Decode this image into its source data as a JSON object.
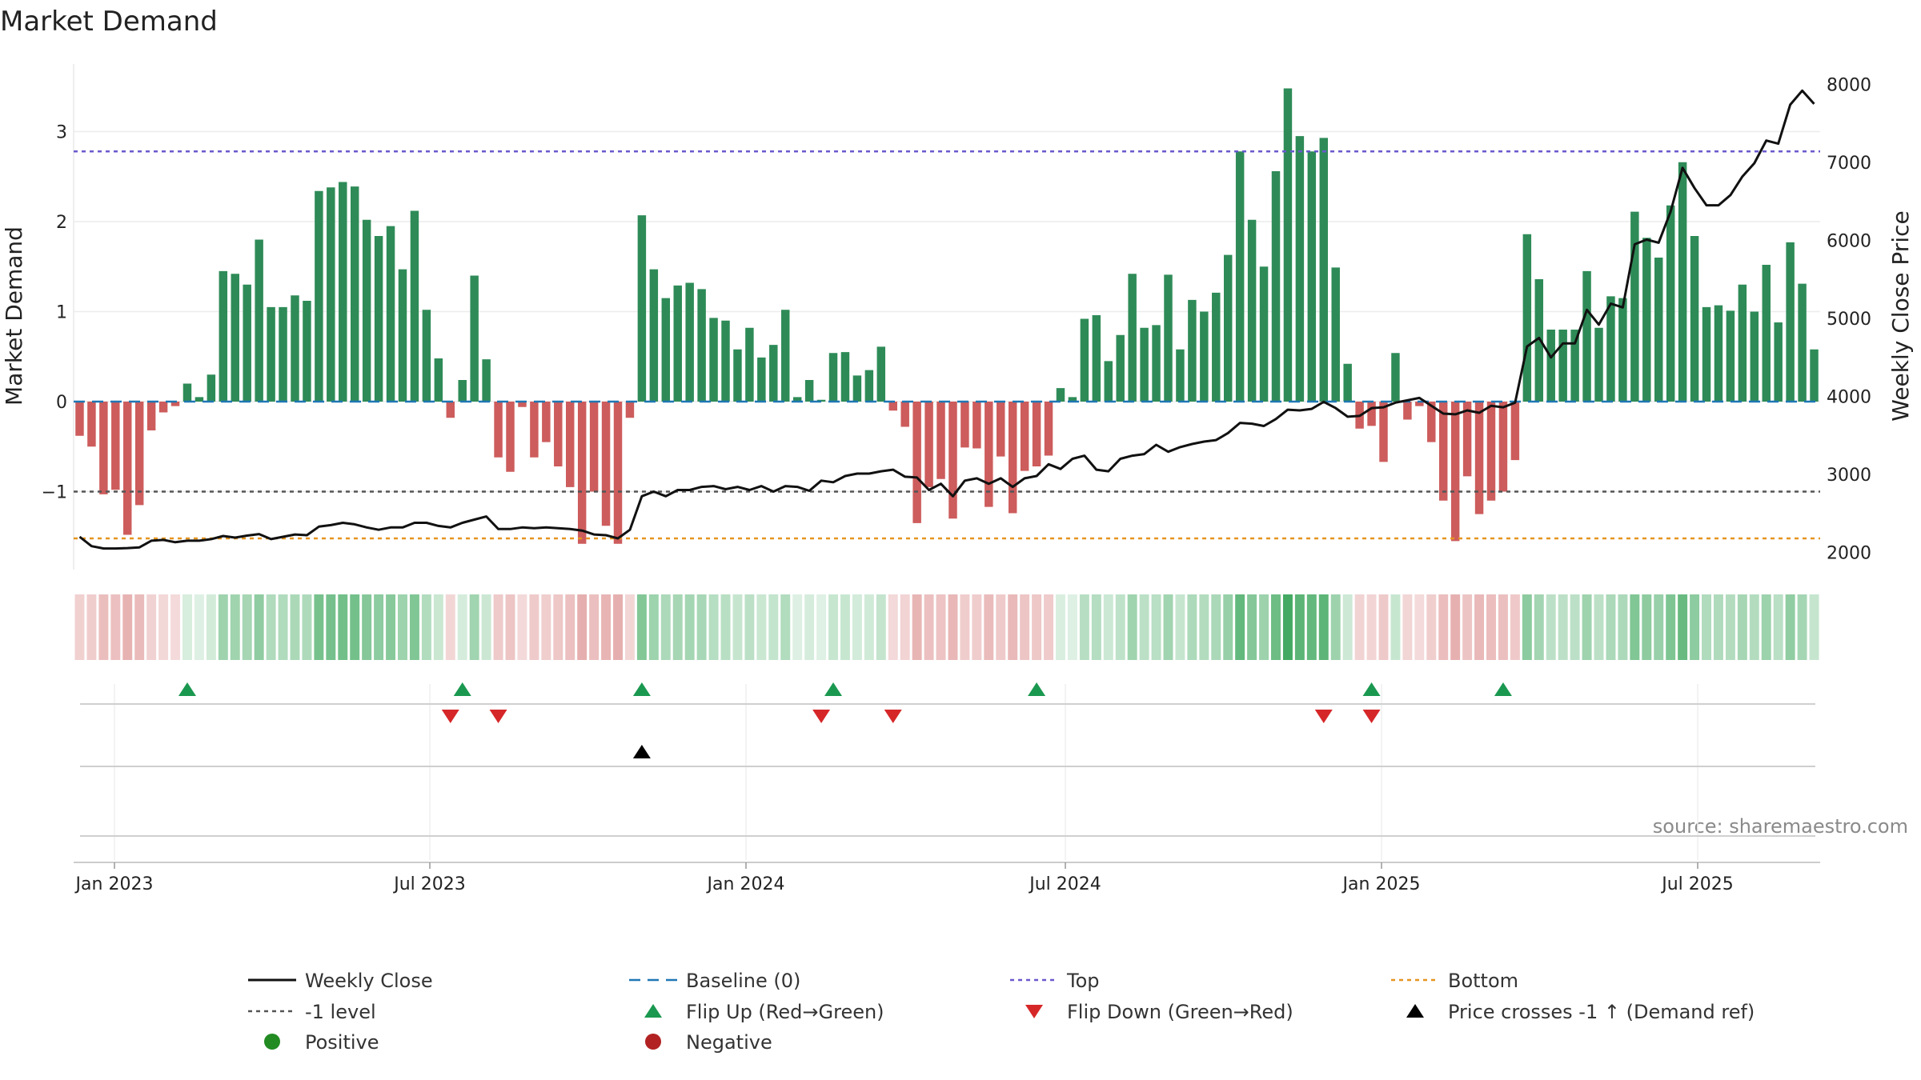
{
  "title": "Market Demand",
  "source": "source: sharemaestro.com",
  "colors": {
    "positive_bar": "#2e8b57",
    "negative_bar": "#cd5c5c",
    "price_line": "#111111",
    "baseline": "#1f77b4",
    "top_line": "#6a5acd",
    "bottom_line": "#e69520",
    "minus1_line": "#555555",
    "flip_up": "#1a9850",
    "flip_down": "#d62728",
    "cross_marker": "#000000",
    "positive_dot": "#228b22",
    "negative_dot": "#b22222"
  },
  "chart_data": {
    "type": "bar",
    "title": "Market Demand",
    "ylabel": "Market Demand",
    "y2label": "Weekly Close Price",
    "ylim": [
      -1.85,
      3.75
    ],
    "y2lim": [
      1700,
      8250
    ],
    "y_ticks": [
      -1,
      0,
      1,
      2,
      3
    ],
    "y_tick_labels": [
      "−1",
      "0",
      "1",
      "2",
      "3"
    ],
    "y2_ticks": [
      2000,
      3000,
      4000,
      5000,
      6000,
      7000,
      8000
    ],
    "x_tick_labels": [
      "Jan 2023",
      "Jul 2023",
      "Jan 2024",
      "Jul 2024",
      "Jan 2025",
      "Jul 2025"
    ],
    "x_tick_weeks": [
      3,
      29,
      55.5,
      81.5,
      108,
      134
    ],
    "reference_lines": {
      "top": 2.78,
      "minus1": -1.0,
      "bottom": -1.52,
      "baseline": 0
    },
    "demand": [
      -0.38,
      -0.5,
      -1.03,
      -0.98,
      -1.48,
      -1.15,
      -0.32,
      -0.12,
      -0.05,
      0.2,
      0.05,
      0.3,
      1.45,
      1.42,
      1.3,
      1.8,
      1.05,
      1.05,
      1.18,
      1.12,
      2.34,
      2.38,
      2.44,
      2.39,
      2.02,
      1.84,
      1.95,
      1.47,
      2.12,
      1.02,
      0.48,
      -0.18,
      0.24,
      1.4,
      0.47,
      -0.62,
      -0.78,
      -0.06,
      -0.62,
      -0.45,
      -0.72,
      -0.95,
      -1.58,
      -1.0,
      -1.38,
      -1.58,
      -0.18,
      2.07,
      1.47,
      1.15,
      1.29,
      1.32,
      1.25,
      0.93,
      0.9,
      0.58,
      0.82,
      0.49,
      0.63,
      1.02,
      0.05,
      0.24,
      0.02,
      0.54,
      0.55,
      0.29,
      0.35,
      0.61,
      -0.1,
      -0.28,
      -1.35,
      -0.95,
      -0.86,
      -1.3,
      -0.51,
      -0.52,
      -1.17,
      -0.61,
      -1.24,
      -0.77,
      -0.72,
      -0.6,
      0.15,
      0.05,
      0.92,
      0.96,
      0.45,
      0.74,
      1.42,
      0.82,
      0.85,
      1.41,
      0.58,
      1.13,
      1.0,
      1.21,
      1.63,
      2.78,
      2.02,
      1.5,
      2.56,
      3.48,
      2.95,
      2.78,
      2.93,
      1.49,
      0.42,
      -0.3,
      -0.27,
      -0.67,
      0.54,
      -0.2,
      -0.05,
      -0.45,
      -1.1,
      -1.55,
      -0.83,
      -1.25,
      -1.1,
      -1.0,
      -0.65,
      1.86,
      1.36,
      0.8,
      0.8,
      0.8,
      1.45,
      0.82,
      1.17,
      1.15,
      2.11,
      1.82,
      1.6,
      2.18,
      2.66,
      1.84,
      1.05,
      1.07,
      1.01,
      1.3,
      1.0,
      1.52,
      0.88,
      1.77,
      1.31,
      0.58
    ],
    "weekly_close": [
      2200,
      2080,
      2050,
      2050,
      2055,
      2065,
      2150,
      2160,
      2130,
      2150,
      2150,
      2170,
      2210,
      2190,
      2215,
      2235,
      2170,
      2200,
      2230,
      2220,
      2330,
      2350,
      2380,
      2360,
      2320,
      2290,
      2320,
      2320,
      2380,
      2380,
      2340,
      2320,
      2380,
      2420,
      2460,
      2300,
      2300,
      2320,
      2310,
      2320,
      2310,
      2300,
      2280,
      2230,
      2220,
      2180,
      2290,
      2720,
      2780,
      2720,
      2800,
      2800,
      2840,
      2850,
      2810,
      2840,
      2800,
      2850,
      2780,
      2850,
      2840,
      2790,
      2920,
      2900,
      2980,
      3010,
      3010,
      3040,
      3060,
      2970,
      2960,
      2800,
      2880,
      2720,
      2920,
      2950,
      2880,
      2950,
      2840,
      2950,
      2980,
      3130,
      3070,
      3200,
      3240,
      3060,
      3040,
      3200,
      3240,
      3260,
      3380,
      3290,
      3350,
      3390,
      3420,
      3440,
      3530,
      3660,
      3650,
      3620,
      3710,
      3830,
      3820,
      3840,
      3930,
      3850,
      3740,
      3750,
      3850,
      3860,
      3920,
      3950,
      3980,
      3880,
      3780,
      3770,
      3820,
      3790,
      3880,
      3860,
      3920,
      4640,
      4750,
      4500,
      4680,
      4680,
      5110,
      4920,
      5190,
      5140,
      5950,
      6010,
      5970,
      6370,
      6930,
      6670,
      6450,
      6450,
      6580,
      6820,
      6990,
      7280,
      7240,
      7740,
      7920,
      7750
    ],
    "flip_up_weeks": [
      9,
      32,
      47,
      63,
      80,
      108,
      119
    ],
    "flip_down_weeks": [
      31,
      35,
      62,
      68,
      104,
      108
    ],
    "cross_weeks": [
      47
    ],
    "legend": [
      {
        "label": "Weekly Close",
        "symbol": "solid-line"
      },
      {
        "label": "Baseline (0)",
        "symbol": "dashed-line"
      },
      {
        "label": "Top",
        "symbol": "dotted-line"
      },
      {
        "label": "Bottom",
        "symbol": "dotted-line"
      },
      {
        "label": "-1 level",
        "symbol": "dotted-line"
      },
      {
        "label": "Flip Up (Red→Green)",
        "symbol": "up-triangle"
      },
      {
        "label": "Flip Down (Green→Red)",
        "symbol": "down-triangle"
      },
      {
        "label": "Price crosses -1 ↑ (Demand ref)",
        "symbol": "up-triangle"
      },
      {
        "label": "Positive",
        "symbol": "dot"
      },
      {
        "label": "Negative",
        "symbol": "dot"
      }
    ]
  }
}
